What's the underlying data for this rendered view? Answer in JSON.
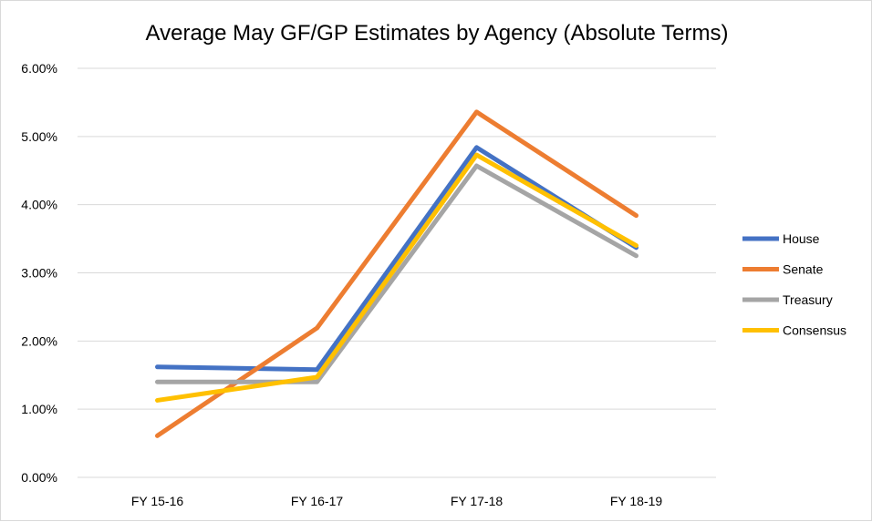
{
  "chart_data": {
    "type": "line",
    "title": "Average May GF/GP Estimates by Agency (Absolute Terms)",
    "xlabel": "",
    "ylabel": "",
    "categories": [
      "FY 15-16",
      "FY 16-17",
      "FY 17-18",
      "FY 18-19"
    ],
    "ylim": [
      0,
      6
    ],
    "y_ticks": [
      "0.00%",
      "1.00%",
      "2.00%",
      "3.00%",
      "4.00%",
      "5.00%",
      "6.00%"
    ],
    "y_unit": "percent",
    "grid": true,
    "legend_position": "right",
    "series": [
      {
        "name": "House",
        "color": "#4472c4",
        "values": [
          1.62,
          1.58,
          4.84,
          3.37
        ]
      },
      {
        "name": "Senate",
        "color": "#ed7d31",
        "values": [
          0.61,
          2.19,
          5.36,
          3.84
        ]
      },
      {
        "name": "Treasury",
        "color": "#a5a5a5",
        "values": [
          1.4,
          1.4,
          4.57,
          3.25
        ]
      },
      {
        "name": "Consensus",
        "color": "#ffc000",
        "values": [
          1.13,
          1.47,
          4.73,
          3.4
        ]
      }
    ]
  }
}
